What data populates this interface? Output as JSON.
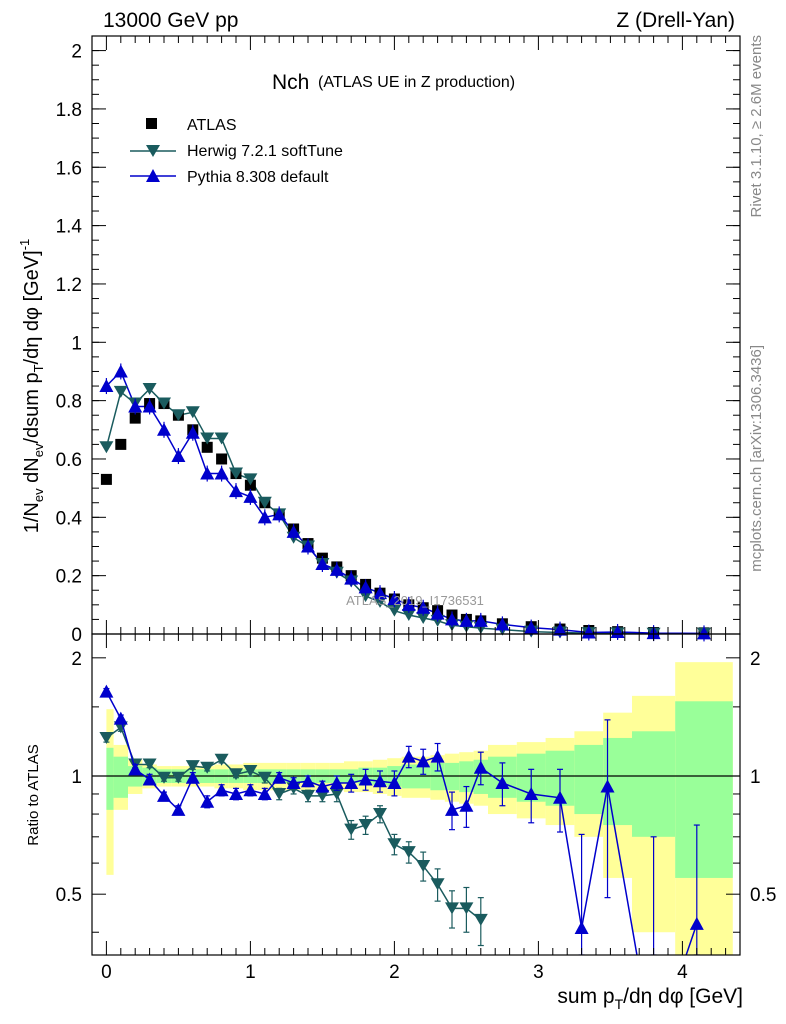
{
  "header": {
    "left": "13000 GeV pp",
    "right": "Z (Drell-Yan)"
  },
  "side_notes": {
    "top": "Rivet 3.1.10, ≥ 2.6M events",
    "bottom": "mcplots.cern.ch [arXiv:1306.3436]"
  },
  "watermark": "ATLAS_2019_I1736531",
  "colors": {
    "atlas": "#000000",
    "herwig": "#1a5b5e",
    "pythia": "#0000cc",
    "band_inner": "#99ff99",
    "band_outer": "#ffff99"
  },
  "chart_data": [
    {
      "type": "line",
      "title_main": "Nch",
      "title_sub": "(ATLAS UE in Z production)",
      "xlabel": "sum p_T/dη dφ [GeV]",
      "ylabel": "1/N_ev dN_ev/dsum p_T/dη dφ [GeV]^-1",
      "xlim": [
        -0.1,
        4.4
      ],
      "ylim": [
        0,
        2.05
      ],
      "x_ticks": [
        0,
        1,
        2,
        3,
        4
      ],
      "y_ticks": [
        "0",
        "0.2",
        "0.4",
        "0.6",
        "0.8",
        "1",
        "1.2",
        "1.4",
        "1.6",
        "1.8",
        "2"
      ],
      "legend_position": "top-left",
      "series": [
        {
          "name": "ATLAS",
          "marker": "square",
          "x": [
            0.0,
            0.1,
            0.2,
            0.3,
            0.4,
            0.5,
            0.6,
            0.7,
            0.8,
            0.9,
            1.0,
            1.1,
            1.2,
            1.3,
            1.4,
            1.5,
            1.6,
            1.7,
            1.8,
            1.9,
            2.0,
            2.1,
            2.2,
            2.3,
            2.4,
            2.5,
            2.6,
            2.75,
            2.95,
            3.15,
            3.35,
            3.55,
            3.8,
            4.15
          ],
          "y": [
            0.53,
            0.65,
            0.74,
            0.79,
            0.79,
            0.75,
            0.7,
            0.64,
            0.6,
            0.55,
            0.51,
            0.45,
            0.41,
            0.36,
            0.31,
            0.26,
            0.23,
            0.2,
            0.17,
            0.14,
            0.12,
            0.1,
            0.09,
            0.08,
            0.065,
            0.05,
            0.045,
            0.035,
            0.025,
            0.017,
            0.012,
            0.008,
            0.005,
            0.004
          ]
        },
        {
          "name": "Herwig 7.2.1 softTune",
          "marker": "triangle-down",
          "x": [
            0.0,
            0.1,
            0.2,
            0.3,
            0.4,
            0.5,
            0.6,
            0.7,
            0.8,
            0.9,
            1.0,
            1.1,
            1.2,
            1.3,
            1.4,
            1.5,
            1.6,
            1.7,
            1.8,
            1.9,
            2.0,
            2.1,
            2.2,
            2.3,
            2.4,
            2.5,
            2.6,
            2.75,
            2.95,
            3.15,
            3.35,
            3.55,
            3.8,
            4.15
          ],
          "y": [
            0.64,
            0.83,
            0.79,
            0.84,
            0.79,
            0.75,
            0.76,
            0.67,
            0.67,
            0.55,
            0.53,
            0.45,
            0.41,
            0.33,
            0.3,
            0.24,
            0.21,
            0.18,
            0.13,
            0.11,
            0.08,
            0.065,
            0.055,
            0.045,
            0.03,
            0.025,
            0.02,
            0.015,
            0.008,
            0.005,
            0.003,
            0.002,
            0.001,
            0.001
          ]
        },
        {
          "name": "Pythia 8.308 default",
          "marker": "triangle-up",
          "x": [
            0.0,
            0.1,
            0.2,
            0.3,
            0.4,
            0.5,
            0.6,
            0.7,
            0.8,
            0.9,
            1.0,
            1.1,
            1.2,
            1.3,
            1.4,
            1.5,
            1.6,
            1.7,
            1.8,
            1.9,
            2.0,
            2.1,
            2.2,
            2.3,
            2.4,
            2.5,
            2.6,
            2.75,
            2.95,
            3.15,
            3.35,
            3.55,
            3.8,
            4.15
          ],
          "y": [
            0.85,
            0.9,
            0.78,
            0.78,
            0.7,
            0.61,
            0.69,
            0.55,
            0.55,
            0.49,
            0.47,
            0.4,
            0.41,
            0.35,
            0.3,
            0.24,
            0.22,
            0.19,
            0.16,
            0.14,
            0.12,
            0.1,
            0.09,
            0.07,
            0.05,
            0.045,
            0.045,
            0.033,
            0.022,
            0.015,
            0.005,
            0.007,
            0.003,
            0.002
          ]
        }
      ]
    },
    {
      "type": "line",
      "ylabel": "Ratio to ATLAS",
      "xlabel": "sum p_T/dη dφ [GeV]",
      "xlim": [
        -0.1,
        4.4
      ],
      "ylim": [
        0.35,
        2.3
      ],
      "y_ticks": [
        "0.5",
        "1",
        "2"
      ],
      "reference_line": 1,
      "bands": {
        "x_edges": [
          0,
          0.05,
          0.15,
          0.25,
          0.35,
          0.45,
          0.55,
          0.65,
          0.75,
          0.85,
          0.95,
          1.05,
          1.15,
          1.25,
          1.35,
          1.45,
          1.55,
          1.65,
          1.75,
          1.85,
          1.95,
          2.05,
          2.15,
          2.25,
          2.35,
          2.45,
          2.55,
          2.65,
          2.85,
          3.05,
          3.25,
          3.45,
          3.65,
          3.95,
          4.35
        ],
        "inner_lo": [
          0.82,
          0.88,
          0.94,
          0.95,
          0.96,
          0.96,
          0.96,
          0.96,
          0.96,
          0.96,
          0.96,
          0.96,
          0.96,
          0.96,
          0.96,
          0.96,
          0.96,
          0.96,
          0.95,
          0.95,
          0.94,
          0.93,
          0.93,
          0.92,
          0.92,
          0.91,
          0.9,
          0.88,
          0.86,
          0.84,
          0.8,
          0.75,
          0.7,
          0.55
        ],
        "inner_hi": [
          1.18,
          1.12,
          1.06,
          1.05,
          1.04,
          1.04,
          1.04,
          1.04,
          1.04,
          1.04,
          1.04,
          1.04,
          1.04,
          1.04,
          1.04,
          1.04,
          1.04,
          1.04,
          1.05,
          1.05,
          1.06,
          1.07,
          1.07,
          1.08,
          1.08,
          1.09,
          1.1,
          1.12,
          1.14,
          1.16,
          1.2,
          1.25,
          1.3,
          1.55
        ],
        "outer_lo": [
          0.56,
          0.82,
          0.9,
          0.93,
          0.94,
          0.94,
          0.94,
          0.94,
          0.93,
          0.93,
          0.92,
          0.92,
          0.92,
          0.92,
          0.92,
          0.92,
          0.92,
          0.91,
          0.91,
          0.9,
          0.89,
          0.88,
          0.88,
          0.87,
          0.86,
          0.85,
          0.84,
          0.8,
          0.78,
          0.75,
          0.7,
          0.55,
          0.4,
          0.3
        ],
        "outer_hi": [
          1.48,
          1.2,
          1.1,
          1.07,
          1.06,
          1.06,
          1.06,
          1.06,
          1.07,
          1.07,
          1.08,
          1.08,
          1.08,
          1.08,
          1.08,
          1.08,
          1.08,
          1.09,
          1.09,
          1.1,
          1.11,
          1.12,
          1.12,
          1.13,
          1.14,
          1.15,
          1.16,
          1.2,
          1.22,
          1.25,
          1.3,
          1.45,
          1.6,
          1.95
        ]
      },
      "series": [
        {
          "name": "Herwig 7.2.1 softTune",
          "x": [
            0.0,
            0.1,
            0.2,
            0.3,
            0.4,
            0.5,
            0.6,
            0.7,
            0.8,
            0.9,
            1.0,
            1.1,
            1.2,
            1.3,
            1.4,
            1.5,
            1.6,
            1.7,
            1.8,
            1.9,
            2.0,
            2.1,
            2.2,
            2.3,
            2.4,
            2.5,
            2.6
          ],
          "y": [
            1.25,
            1.33,
            1.07,
            1.07,
            0.99,
            0.99,
            1.06,
            1.05,
            1.1,
            1.01,
            1.03,
            0.99,
            0.9,
            0.93,
            0.89,
            0.89,
            0.9,
            0.73,
            0.75,
            0.8,
            0.67,
            0.64,
            0.59,
            0.53,
            0.46,
            0.46,
            0.43
          ],
          "err": [
            0.03,
            0.03,
            0.02,
            0.02,
            0.02,
            0.02,
            0.02,
            0.02,
            0.02,
            0.02,
            0.03,
            0.03,
            0.03,
            0.03,
            0.03,
            0.03,
            0.04,
            0.04,
            0.04,
            0.04,
            0.04,
            0.04,
            0.05,
            0.05,
            0.05,
            0.06,
            0.06
          ]
        },
        {
          "name": "Pythia 8.308 default",
          "x": [
            0.0,
            0.1,
            0.2,
            0.3,
            0.4,
            0.5,
            0.6,
            0.7,
            0.8,
            0.9,
            1.0,
            1.1,
            1.2,
            1.3,
            1.4,
            1.5,
            1.6,
            1.7,
            1.8,
            1.9,
            2.0,
            2.1,
            2.2,
            2.3,
            2.4,
            2.5,
            2.6,
            2.75,
            2.95,
            3.15,
            3.3,
            3.48,
            3.8,
            4.1
          ],
          "y": [
            1.64,
            1.4,
            1.04,
            0.98,
            0.89,
            0.82,
            0.99,
            0.86,
            0.92,
            0.9,
            0.92,
            0.9,
            0.99,
            0.96,
            0.97,
            0.94,
            0.96,
            0.96,
            0.98,
            0.97,
            0.96,
            1.12,
            1.09,
            1.12,
            0.82,
            0.84,
            1.05,
            0.96,
            0.9,
            0.88,
            0.41,
            0.94,
            0.2,
            0.42
          ],
          "err": [
            0.03,
            0.03,
            0.03,
            0.03,
            0.02,
            0.02,
            0.03,
            0.03,
            0.03,
            0.03,
            0.03,
            0.03,
            0.03,
            0.03,
            0.03,
            0.03,
            0.04,
            0.05,
            0.06,
            0.06,
            0.07,
            0.07,
            0.08,
            0.09,
            0.09,
            0.1,
            0.1,
            0.12,
            0.14,
            0.16,
            0.3,
            0.45,
            0.5,
            0.33
          ]
        }
      ]
    }
  ]
}
